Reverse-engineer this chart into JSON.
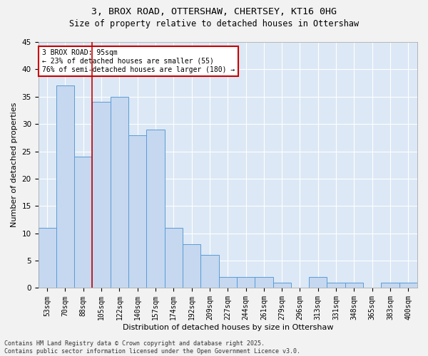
{
  "title": "3, BROX ROAD, OTTERSHAW, CHERTSEY, KT16 0HG",
  "subtitle": "Size of property relative to detached houses in Ottershaw",
  "xlabel": "Distribution of detached houses by size in Ottershaw",
  "ylabel": "Number of detached properties",
  "categories": [
    "53sqm",
    "70sqm",
    "88sqm",
    "105sqm",
    "122sqm",
    "140sqm",
    "157sqm",
    "174sqm",
    "192sqm",
    "209sqm",
    "227sqm",
    "244sqm",
    "261sqm",
    "279sqm",
    "296sqm",
    "313sqm",
    "331sqm",
    "348sqm",
    "365sqm",
    "383sqm",
    "400sqm"
  ],
  "values": [
    11,
    37,
    24,
    34,
    35,
    28,
    29,
    11,
    8,
    6,
    2,
    2,
    2,
    1,
    0,
    2,
    1,
    1,
    0,
    1,
    1
  ],
  "bar_color": "#c5d8f0",
  "bar_edge_color": "#5b9bd5",
  "background_color": "#dce8f5",
  "grid_color": "#ffffff",
  "vline_color": "#cc0000",
  "vline_index": 2.5,
  "annotation_text": "3 BROX ROAD: 95sqm\n← 23% of detached houses are smaller (55)\n76% of semi-detached houses are larger (180) →",
  "annotation_box_color": "#ffffff",
  "annotation_box_edge": "#cc0000",
  "ylim": [
    0,
    45
  ],
  "yticks": [
    0,
    5,
    10,
    15,
    20,
    25,
    30,
    35,
    40,
    45
  ],
  "footer": "Contains HM Land Registry data © Crown copyright and database right 2025.\nContains public sector information licensed under the Open Government Licence v3.0.",
  "title_fontsize": 9.5,
  "subtitle_fontsize": 8.5,
  "xlabel_fontsize": 8,
  "ylabel_fontsize": 8,
  "tick_fontsize": 7,
  "annotation_fontsize": 7,
  "footer_fontsize": 6
}
